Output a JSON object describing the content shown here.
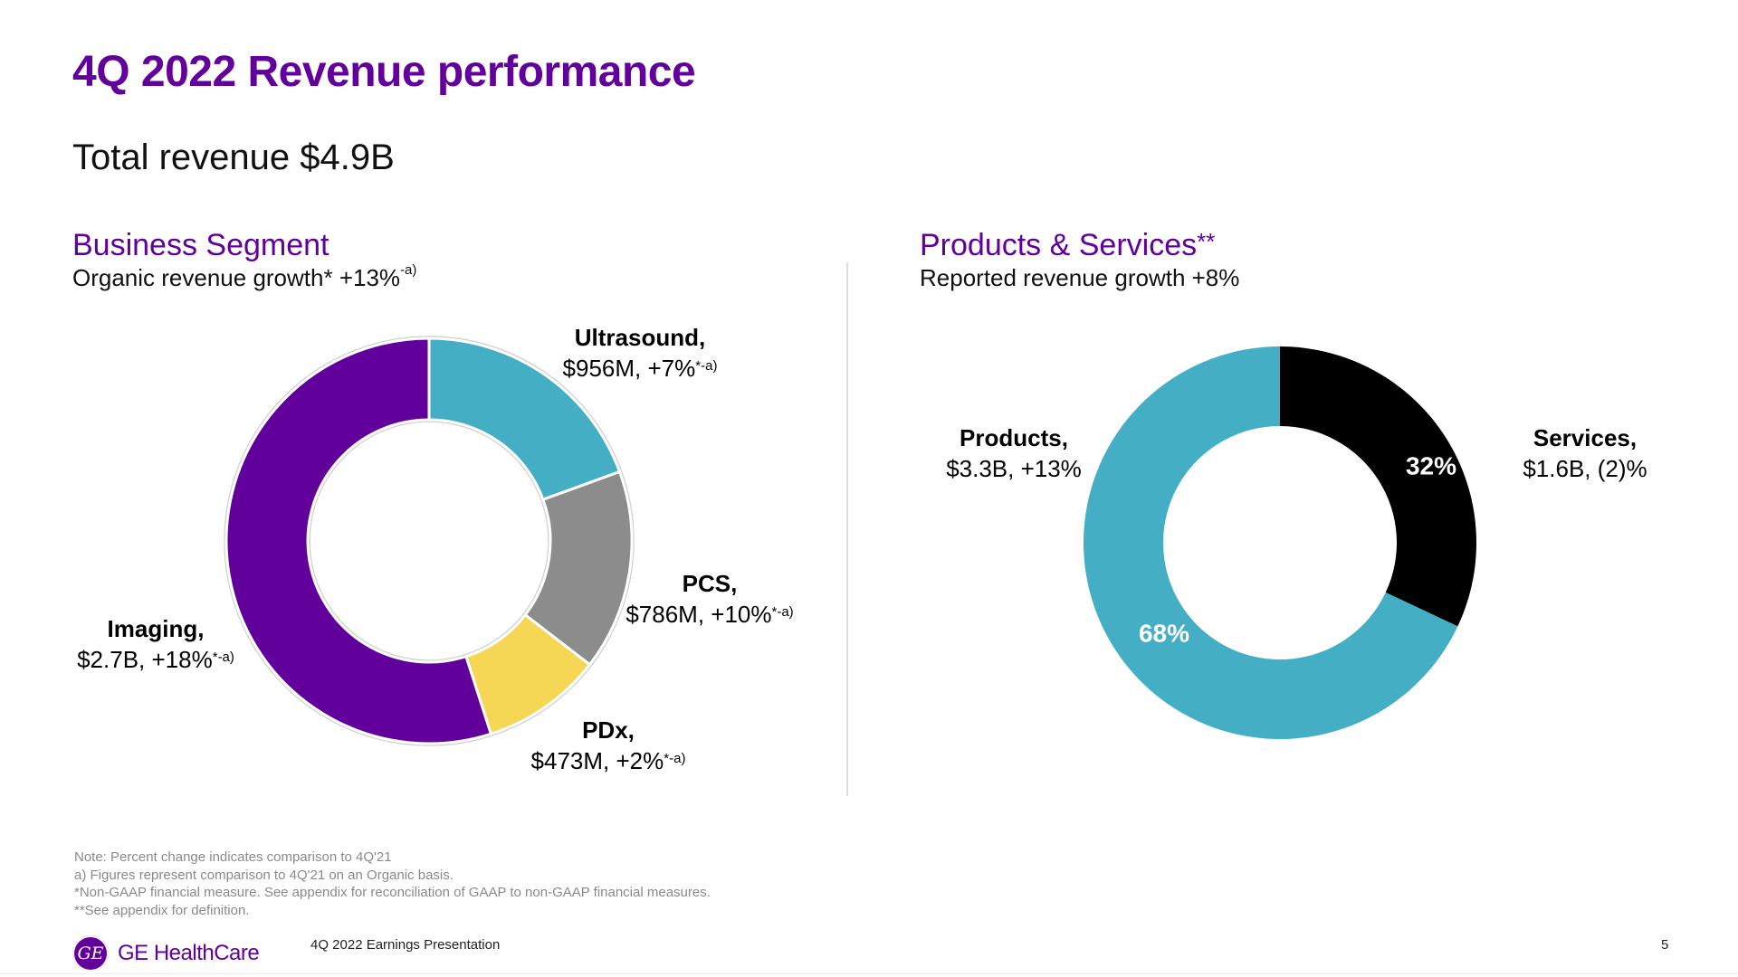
{
  "title": "4Q 2022 Revenue performance",
  "subtitle": "Total revenue $4.9B",
  "business_segment": {
    "heading": "Business Segment",
    "subheading": "Organic revenue growth* +13%",
    "subheading_sup": "-a)"
  },
  "products_services": {
    "heading": "Products & Services",
    "heading_sup": "**",
    "subheading": "Reported revenue growth +8%"
  },
  "notes": [
    "Note: Percent change indicates comparison to 4Q'21",
    "a) Figures represent comparison to 4Q'21 on an Organic basis.",
    "*Non-GAAP financial measure. See appendix for reconciliation of GAAP to non-GAAP financial measures.",
    "**See appendix for definition."
  ],
  "footer": {
    "brand": "GE HealthCare",
    "logo_text": "GE",
    "presentation": "4Q 2022 Earnings Presentation",
    "page": "5"
  },
  "colors": {
    "brand_purple": "#62009b",
    "ultrasound": "#44afc4",
    "pcs": "#8c8c8c",
    "pdx": "#f6d755",
    "imaging": "#62009b",
    "services": "#000000",
    "products": "#44afc4"
  },
  "chart_data": [
    {
      "type": "pie",
      "variant": "donut",
      "title": "Business Segment",
      "subtitle": "Organic revenue growth* +13%-a)",
      "unit": "$M",
      "slices": [
        {
          "name": "Ultrasound",
          "value": 956,
          "label_name": "Ultrasound,",
          "label_value": "$956M, +7%",
          "sup": "*-a)",
          "color": "#44afc4"
        },
        {
          "name": "PCS",
          "value": 786,
          "label_name": "PCS,",
          "label_value": "$786M, +10%",
          "sup": "*-a)",
          "color": "#8c8c8c"
        },
        {
          "name": "PDx",
          "value": 473,
          "label_name": "PDx,",
          "label_value": "$473M, +2%",
          "sup": "*-a)",
          "color": "#f6d755"
        },
        {
          "name": "Imaging",
          "value": 2700,
          "label_name": "Imaging,",
          "label_value": "$2.7B, +18%",
          "sup": "*-a)",
          "color": "#62009b"
        }
      ],
      "start": "top",
      "direction": "clockwise"
    },
    {
      "type": "pie",
      "variant": "donut",
      "title": "Products & Services**",
      "subtitle": "Reported revenue growth +8%",
      "unit": "%",
      "slices": [
        {
          "name": "Services",
          "value": 32,
          "pct_label": "32%",
          "label_name": "Services,",
          "label_value": "$1.6B, (2)%",
          "color": "#000000"
        },
        {
          "name": "Products",
          "value": 68,
          "pct_label": "68%",
          "label_name": "Products,",
          "label_value": "$3.3B, +13%",
          "color": "#44afc4"
        }
      ],
      "start": "top",
      "direction": "clockwise"
    }
  ]
}
